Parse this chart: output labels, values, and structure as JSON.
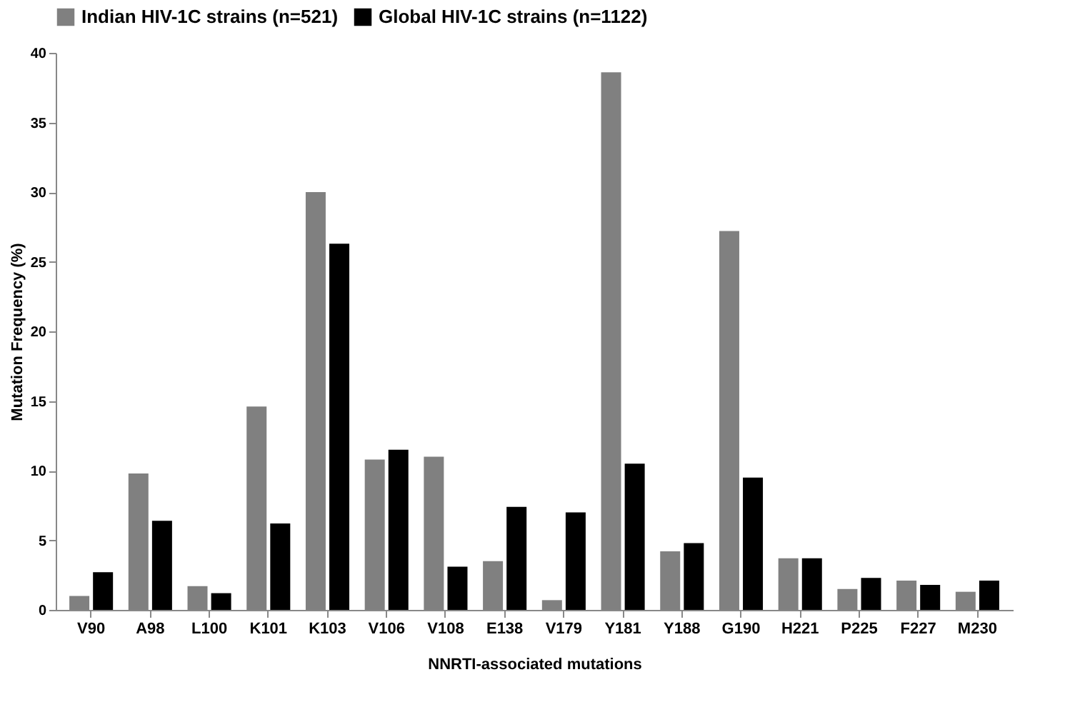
{
  "chart_data": {
    "type": "bar",
    "xlabel": "NNRTI-associated mutations",
    "ylabel": "Mutation Frequency (%)",
    "categories": [
      "V90",
      "A98",
      "L100",
      "K101",
      "K103",
      "V106",
      "V108",
      "E138",
      "V179",
      "Y181",
      "Y188",
      "G190",
      "H221",
      "P225",
      "F227",
      "M230"
    ],
    "series": [
      {
        "name": "Indian HIV-1C strains (n=521)",
        "color": "#808080",
        "values": [
          1.0,
          9.8,
          1.7,
          14.6,
          30.0,
          10.8,
          11.0,
          3.5,
          0.7,
          38.6,
          4.2,
          27.2,
          3.7,
          1.5,
          2.1,
          1.3
        ]
      },
      {
        "name": "Global HIV-1C strains (n=1122)",
        "color": "#000000",
        "values": [
          2.7,
          6.4,
          1.2,
          6.2,
          26.3,
          11.5,
          3.1,
          7.4,
          7.0,
          10.5,
          4.8,
          9.5,
          3.7,
          2.3,
          1.8,
          2.1
        ]
      }
    ],
    "ylim": [
      0,
      40
    ],
    "yticks": [
      0,
      5,
      10,
      15,
      20,
      25,
      30,
      35,
      40
    ],
    "grid": false,
    "legend": "top"
  }
}
